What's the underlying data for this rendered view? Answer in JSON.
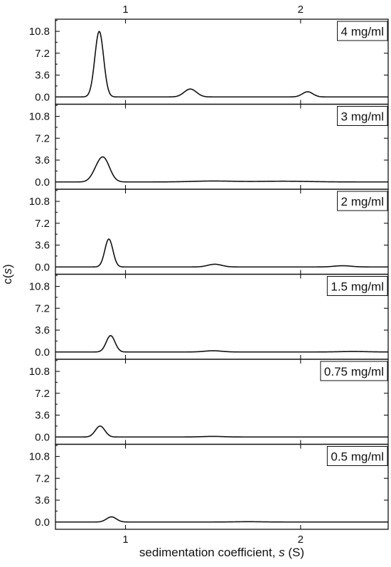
{
  "chart_data": {
    "type": "line",
    "xlabel": "sedimentation coefficient, s (S)",
    "ylabel": "c(s)",
    "xlim": [
      0.6,
      2.5
    ],
    "ylim": [
      -1.2,
      12.8
    ],
    "x_ticks": [
      1,
      2
    ],
    "x_tick_labels": [
      "1",
      "2"
    ],
    "y_ticks": [
      0.0,
      3.6,
      7.2,
      10.8
    ],
    "y_tick_labels": [
      "0.0",
      "3.6",
      "7.2",
      "10.8"
    ],
    "label_placement": "top-right box in each panel",
    "panels": [
      {
        "label": "4 mg/ml",
        "peaks": [
          {
            "center": 0.85,
            "height": 10.8,
            "width": 0.025
          },
          {
            "center": 1.37,
            "height": 1.3,
            "width": 0.035
          },
          {
            "center": 2.04,
            "height": 0.85,
            "width": 0.03
          }
        ]
      },
      {
        "label": "3 mg/ml",
        "peaks": [
          {
            "center": 0.875,
            "height": 3.8,
            "width": 0.035
          },
          {
            "center": 0.83,
            "height": 0.9,
            "width": 0.03
          },
          {
            "center": 1.5,
            "height": 0.15,
            "width": 0.12
          },
          {
            "center": 1.9,
            "height": 0.12,
            "width": 0.15
          }
        ]
      },
      {
        "label": "2 mg/ml",
        "peaks": [
          {
            "center": 0.905,
            "height": 4.6,
            "width": 0.023
          },
          {
            "center": 1.51,
            "height": 0.45,
            "width": 0.04
          },
          {
            "center": 2.24,
            "height": 0.2,
            "width": 0.05
          }
        ]
      },
      {
        "label": "1.5 mg/ml",
        "peaks": [
          {
            "center": 0.915,
            "height": 2.7,
            "width": 0.025
          },
          {
            "center": 1.5,
            "height": 0.2,
            "width": 0.05
          },
          {
            "center": 2.3,
            "height": 0.08,
            "width": 0.08
          }
        ]
      },
      {
        "label": "0.75 mg/ml",
        "peaks": [
          {
            "center": 0.855,
            "height": 1.8,
            "width": 0.027
          },
          {
            "center": 1.5,
            "height": 0.1,
            "width": 0.06
          }
        ]
      },
      {
        "label": "0.5 mg/ml",
        "peaks": [
          {
            "center": 0.92,
            "height": 0.85,
            "width": 0.028
          },
          {
            "center": 1.7,
            "height": 0.05,
            "width": 0.08
          }
        ]
      }
    ]
  }
}
